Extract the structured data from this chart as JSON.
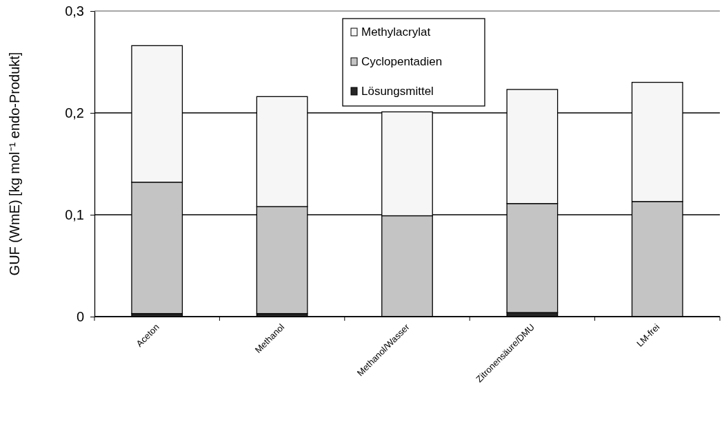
{
  "chart_data": {
    "type": "bar",
    "stacked": true,
    "ylabel": "GUF (WmE) [kg mol⁻¹ endo-Produkt]",
    "categories": [
      "Aceton",
      "Methanol",
      "Methanol/Wasser",
      "Zitronensäure/DMU",
      "LM-frei"
    ],
    "series": [
      {
        "name": "Lösungsmittel",
        "color": "#262626",
        "values": [
          0.003,
          0.003,
          0,
          0.004,
          0
        ]
      },
      {
        "name": "Cyclopentadien",
        "color": "#c4c4c4",
        "values": [
          0.129,
          0.105,
          0.099,
          0.107,
          0.113
        ]
      },
      {
        "name": "Methylacrylat",
        "color": "#f6f6f6",
        "values": [
          0.134,
          0.108,
          0.102,
          0.112,
          0.117
        ]
      }
    ],
    "ylim": [
      0,
      0.3
    ],
    "yticks": [
      {
        "value": 0,
        "label": "0"
      },
      {
        "value": 0.1,
        "label": "0,1"
      },
      {
        "value": 0.2,
        "label": "0,2"
      },
      {
        "value": 0.3,
        "label": "0,3"
      }
    ],
    "grid": "y",
    "legend": "top"
  }
}
